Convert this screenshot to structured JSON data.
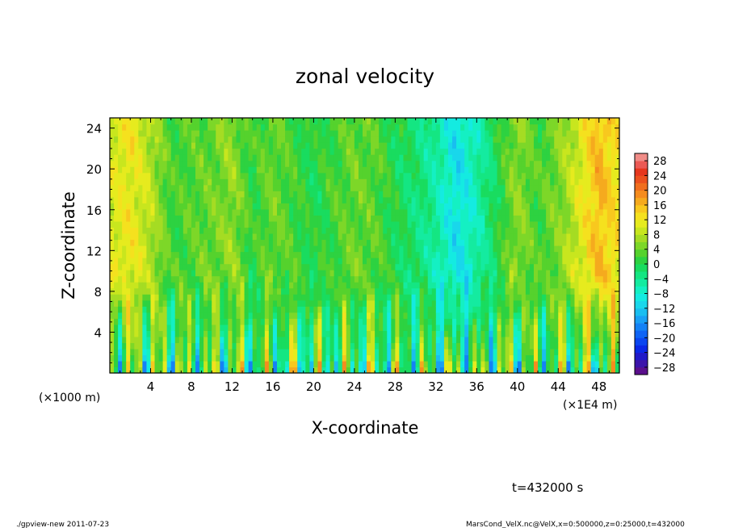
{
  "chart_data": {
    "type": "heatmap",
    "title": "zonal velocity",
    "xlabel": "X-coordinate",
    "ylabel": "Z-coordinate",
    "x_unit_left": "(×1000 m)",
    "x_unit_right": "(×1E4 m)",
    "xlim": [
      0,
      50
    ],
    "ylim": [
      0,
      25
    ],
    "x_ticks": [
      4,
      8,
      12,
      16,
      20,
      24,
      28,
      32,
      36,
      40,
      44,
      48
    ],
    "y_ticks": [
      4,
      8,
      12,
      16,
      20,
      24
    ],
    "colorbar": {
      "min": -30,
      "max": 30,
      "labels": [
        "28",
        "24",
        "20",
        "16",
        "12",
        "8",
        "4",
        "0",
        "−4",
        "−8",
        "−12",
        "−16",
        "−20",
        "−24",
        "−28"
      ],
      "levels": [
        -30,
        -28,
        -26,
        -24,
        -22,
        -20,
        -18,
        -16,
        -14,
        -12,
        -10,
        -8,
        -6,
        -4,
        -2,
        0,
        2,
        4,
        6,
        8,
        10,
        12,
        14,
        16,
        18,
        20,
        22,
        24,
        26,
        28,
        30
      ],
      "colors": [
        "#5a0f8c",
        "#3c14aa",
        "#2019c8",
        "#0a28e6",
        "#0a46f0",
        "#0f64f5",
        "#1482f5",
        "#19a0f5",
        "#19bef0",
        "#19d7eb",
        "#14ebe1",
        "#14f0c3",
        "#14eba0",
        "#14e682",
        "#19dc5f",
        "#2dd241",
        "#55d22d",
        "#7dd728",
        "#a5dc23",
        "#c8e61e",
        "#e6eb1e",
        "#f5e11e",
        "#f8c81e",
        "#f5aa1e",
        "#f58c1e",
        "#f06e1e",
        "#eb501e",
        "#e6371e",
        "#eb5a55",
        "#f08c87"
      ]
    },
    "field_profile": {
      "x": [
        0,
        2,
        4,
        6,
        8,
        10,
        12,
        14,
        16,
        18,
        20,
        22,
        24,
        26,
        28,
        30,
        32,
        34,
        36,
        38,
        40,
        42,
        44,
        46,
        48,
        50
      ],
      "upper_values": [
        10,
        12,
        8,
        2,
        3,
        4,
        6,
        1,
        4,
        2,
        0,
        2,
        4,
        3,
        0,
        -2,
        -5,
        -10,
        -6,
        0,
        6,
        2,
        5,
        10,
        16,
        12
      ],
      "surface_min": -18,
      "surface_max": 18
    }
  },
  "annotation_time": "t=432000 s",
  "footer_left": "./gpview-new   2011-07-23",
  "footer_right": "MarsCond_VelX.nc@VelX,x=0:500000,z=0:25000,t=432000"
}
